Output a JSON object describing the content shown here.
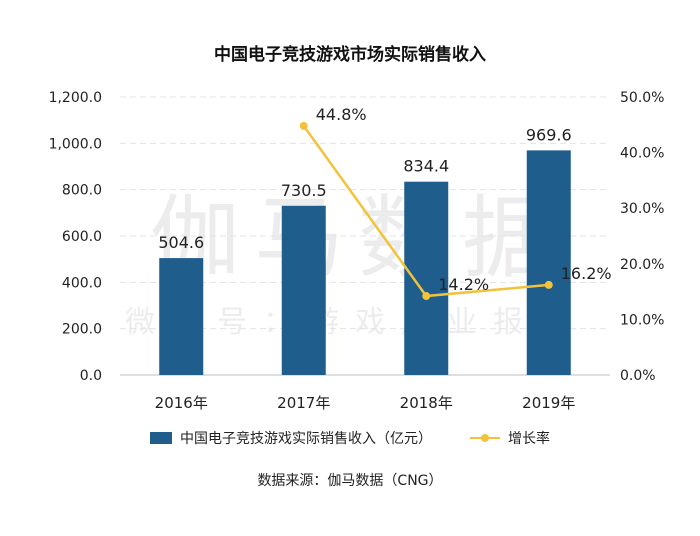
{
  "chart_data": {
    "type": "bar",
    "title": "中国电子竞技游戏市场实际销售收入",
    "categories": [
      "2016年",
      "2017年",
      "2018年",
      "2019年"
    ],
    "series": [
      {
        "name": "中国电子竞技游戏实际销售收入（亿元）",
        "type": "bar",
        "axis": "left",
        "values": [
          504.6,
          730.5,
          834.4,
          969.6
        ],
        "labels": [
          "504.6",
          "730.5",
          "834.4",
          "969.6"
        ],
        "color": "#1f5d8c"
      },
      {
        "name": "增长率",
        "type": "line",
        "axis": "right",
        "values": [
          null,
          44.8,
          14.2,
          16.2
        ],
        "labels": [
          "",
          "44.8%",
          "14.2%",
          "16.2%"
        ],
        "color": "#f2c23a"
      }
    ],
    "y_left": {
      "ylim": [
        0,
        1200
      ],
      "ticks": [
        "0.0",
        "200.0",
        "400.0",
        "600.0",
        "800.0",
        "1,000.0",
        "1,200.0"
      ]
    },
    "y_right": {
      "ylim": [
        0,
        50
      ],
      "ticks": [
        "0.0%",
        "10.0%",
        "20.0%",
        "30.0%",
        "40.0%",
        "50.0%"
      ]
    },
    "grid": true,
    "legend": "bottom"
  },
  "source": "数据来源：伽马数据（CNG）",
  "watermark": {
    "main": "伽马数据",
    "sub": "微信号：游戏产业报告"
  }
}
